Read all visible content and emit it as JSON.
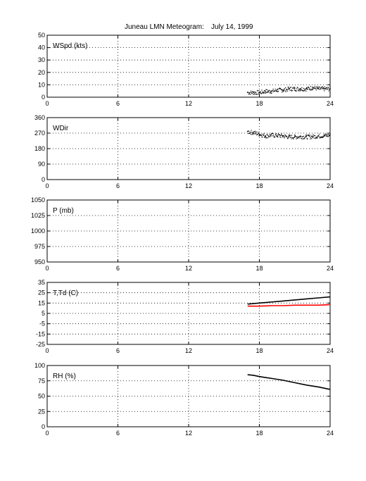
{
  "title": {
    "station": "Juneau LMN Meteogram:",
    "date": "July 14, 1999"
  },
  "chart_data": [
    {
      "type": "scatter",
      "label": "WSpd (kts)",
      "xlim": [
        0,
        24
      ],
      "ylim": [
        0,
        50
      ],
      "xticks": [
        0,
        6,
        12,
        18,
        24
      ],
      "yticks": [
        0,
        10,
        20,
        30,
        40,
        50
      ],
      "grid": true,
      "series": [
        {
          "color": "#000000",
          "x": [
            17.0,
            17.5,
            18.0,
            18.5,
            19.0,
            19.5,
            20.0,
            20.5,
            21.0,
            21.5,
            22.0,
            22.5,
            23.0,
            23.5,
            24.0
          ],
          "y": [
            4,
            4,
            4,
            5,
            5,
            6,
            6,
            7,
            7,
            7,
            7,
            8,
            7,
            7,
            7
          ]
        }
      ]
    },
    {
      "type": "scatter",
      "label": "WDir",
      "xlim": [
        0,
        24
      ],
      "ylim": [
        0,
        360
      ],
      "xticks": [
        0,
        6,
        12,
        18,
        24
      ],
      "yticks": [
        0,
        90,
        180,
        270,
        360
      ],
      "grid": true,
      "series": [
        {
          "color": "#000000",
          "x": [
            17.0,
            17.5,
            18.0,
            18.5,
            19.0,
            19.5,
            20.0,
            20.5,
            21.0,
            21.5,
            22.0,
            22.5,
            23.0,
            23.5,
            24.0
          ],
          "y": [
            280,
            275,
            265,
            255,
            260,
            258,
            255,
            250,
            250,
            252,
            250,
            252,
            255,
            257,
            260
          ]
        }
      ]
    },
    {
      "type": "line",
      "label": "P (mb)",
      "xlim": [
        0,
        24
      ],
      "ylim": [
        950,
        1050
      ],
      "xticks": [
        0,
        6,
        12,
        18,
        24
      ],
      "yticks": [
        950,
        975,
        1000,
        1025,
        1050
      ],
      "grid": true,
      "series": []
    },
    {
      "type": "line",
      "label": "T,Td (C)",
      "xlim": [
        0,
        24
      ],
      "ylim": [
        -25,
        35
      ],
      "xticks": [
        0,
        6,
        12,
        18,
        24
      ],
      "yticks": [
        -25,
        -15,
        -5,
        5,
        15,
        25,
        35
      ],
      "grid": true,
      "series": [
        {
          "color": "#000000",
          "x": [
            17.0,
            18.0,
            19.0,
            20.0,
            21.0,
            22.0,
            23.0,
            24.0
          ],
          "y": [
            14.0,
            15.0,
            16.0,
            17.0,
            18.0,
            19.0,
            20.0,
            21.0
          ]
        },
        {
          "color": "#ff0000",
          "x": [
            17.0,
            18.0,
            19.0,
            20.0,
            21.0,
            22.0,
            23.0,
            24.0
          ],
          "y": [
            12.0,
            12.0,
            12.5,
            12.5,
            13.0,
            13.0,
            13.0,
            13.5
          ]
        }
      ]
    },
    {
      "type": "line",
      "label": "RH (%)",
      "xlim": [
        0,
        24
      ],
      "ylim": [
        0,
        100
      ],
      "xticks": [
        0,
        6,
        12,
        18,
        24
      ],
      "yticks": [
        0,
        25,
        50,
        75,
        100
      ],
      "grid": true,
      "series": [
        {
          "color": "#000000",
          "x": [
            17.0,
            17.5,
            18.0,
            19.0,
            20.0,
            21.0,
            22.0,
            23.0,
            24.0
          ],
          "y": [
            85,
            84,
            82,
            79,
            76,
            72,
            68,
            65,
            61
          ]
        }
      ]
    }
  ]
}
